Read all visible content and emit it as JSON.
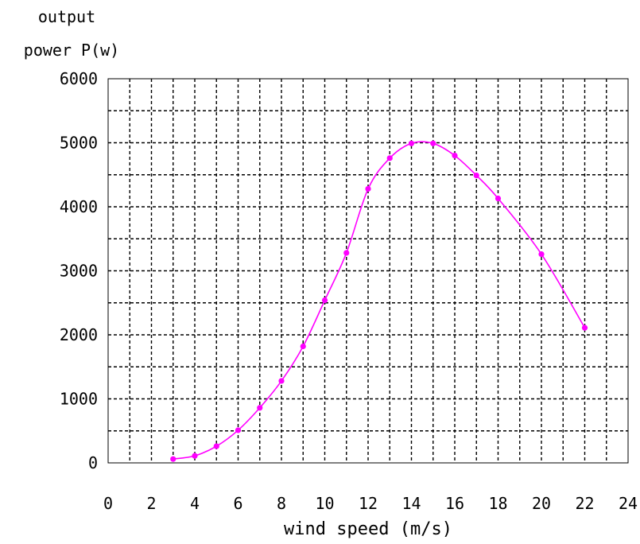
{
  "chart_data": {
    "type": "line",
    "title": "",
    "ylabel_line1": "output",
    "ylabel_line2": "power P(w)",
    "xlabel": "wind speed (m/s)",
    "xlim": [
      0,
      24
    ],
    "ylim": [
      0,
      6000
    ],
    "x_ticks": [
      "0",
      "2",
      "4",
      "6",
      "8",
      "10",
      "12",
      "14",
      "16",
      "18",
      "20",
      "22",
      "24"
    ],
    "y_ticks": [
      "0",
      "1000",
      "2000",
      "3000",
      "4000",
      "5000",
      "6000"
    ],
    "grid": true,
    "series_color": "#ff00ff",
    "series": [
      {
        "x": [
          3,
          4,
          5,
          6,
          7,
          8,
          9,
          10,
          11,
          12,
          13,
          14,
          15,
          16,
          17,
          18,
          20,
          22
        ],
        "values": [
          60,
          110,
          260,
          510,
          860,
          1280,
          1820,
          2540,
          3280,
          4280,
          4760,
          4990,
          4990,
          4800,
          4490,
          4130,
          3260,
          2110
        ]
      }
    ]
  }
}
